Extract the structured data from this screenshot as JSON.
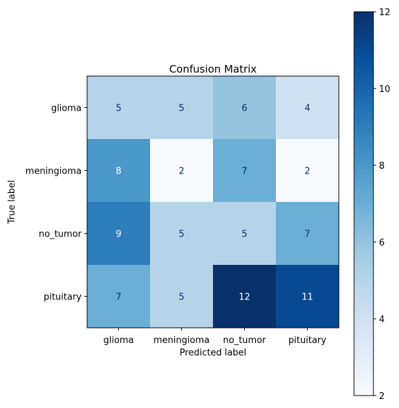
{
  "chart_data": {
    "type": "heatmap",
    "title": "Confusion Matrix",
    "xlabel": "Predicted label",
    "ylabel": "True label",
    "x_categories": [
      "glioma",
      "meningioma",
      "no_tumor",
      "pituitary"
    ],
    "y_categories": [
      "glioma",
      "meningioma",
      "no_tumor",
      "pituitary"
    ],
    "values": [
      [
        5,
        5,
        6,
        4
      ],
      [
        8,
        2,
        7,
        2
      ],
      [
        9,
        5,
        5,
        7
      ],
      [
        7,
        5,
        12,
        11
      ]
    ],
    "colormap": "Blues",
    "vmin": 2,
    "vmax": 12,
    "colorbar_ticks": [
      "2",
      "4",
      "6",
      "8",
      "10",
      "12"
    ],
    "grid": false
  }
}
